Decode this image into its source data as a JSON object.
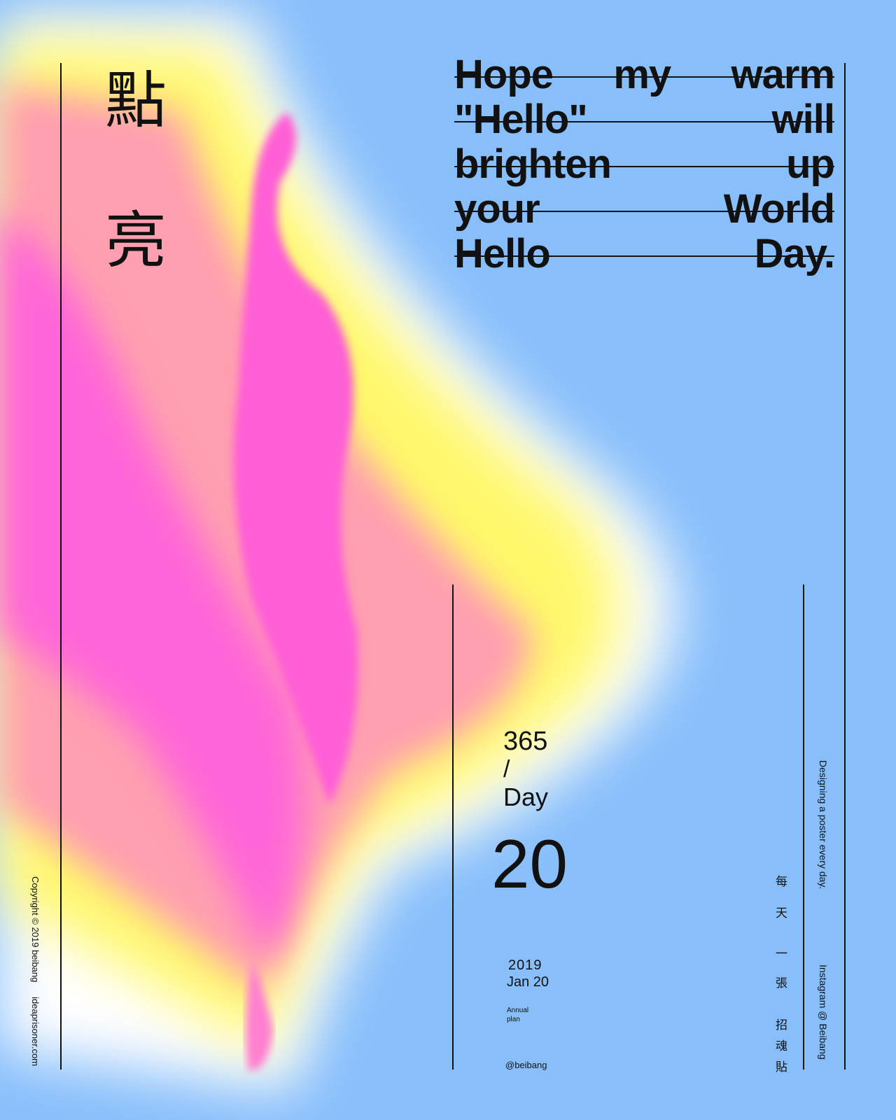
{
  "title_chars": [
    "點",
    "亮"
  ],
  "headline": [
    "Hope my warm",
    "\"Hello\" will",
    "brighten up",
    "your World",
    "Hello Day."
  ],
  "counter": {
    "total": "365",
    "slash": "/",
    "unit": "Day",
    "number": "20"
  },
  "date": {
    "year": "2019",
    "day": "Jan 20"
  },
  "annual": [
    "Annual",
    "plan"
  ],
  "handle": "@beibang",
  "side_right": {
    "tagline": "Designing a poster every day.",
    "instagram": "Instagram @ Beibang",
    "chinese": [
      "每",
      "天",
      "一",
      "張",
      "招",
      "魂",
      "貼"
    ]
  },
  "side_left": {
    "copyright": "Copyright © 2019 beibang",
    "site": "ideaprisoner.com"
  }
}
